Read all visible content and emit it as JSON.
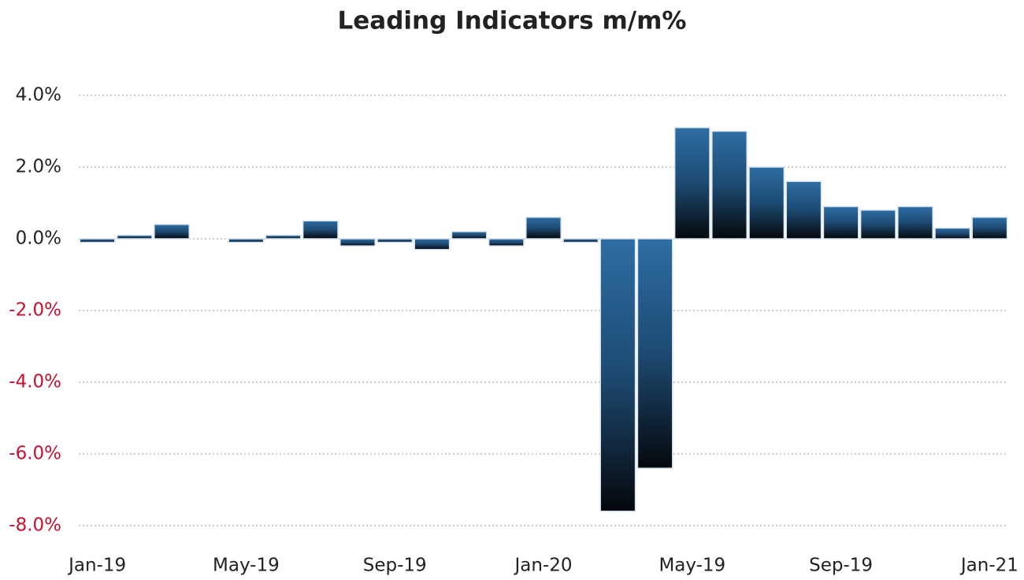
{
  "chart_data": {
    "type": "bar",
    "title": "Leading Indicators m/m%",
    "categories": [
      "Jan-19",
      null,
      null,
      null,
      "May-19",
      null,
      null,
      null,
      "Sep-19",
      null,
      null,
      null,
      "Jan-20",
      null,
      null,
      null,
      "May-19",
      null,
      null,
      null,
      "Sep-19",
      null,
      null,
      null,
      "Jan-21"
    ],
    "values": [
      -0.1,
      0.1,
      0.4,
      0.0,
      -0.1,
      0.1,
      0.5,
      -0.2,
      -0.1,
      -0.3,
      0.2,
      -0.2,
      0.6,
      -0.1,
      -7.6,
      -6.4,
      3.1,
      3.0,
      2.0,
      1.6,
      0.9,
      0.8,
      0.9,
      0.3,
      0.6
    ],
    "color": "#2e6da4",
    "ylim": [
      -8,
      4
    ],
    "yticks": [
      {
        "value": -8,
        "label": "-8.0%"
      },
      {
        "value": -6,
        "label": "-6.0%"
      },
      {
        "value": -4,
        "label": "-4.0%"
      },
      {
        "value": -2,
        "label": "-2.0%"
      },
      {
        "value": 0,
        "label": "0.0%"
      },
      {
        "value": 2,
        "label": "2.0%"
      },
      {
        "value": 4,
        "label": "4.0%"
      }
    ],
    "grid": true,
    "negative_tick_label_color": "#c8102e"
  }
}
